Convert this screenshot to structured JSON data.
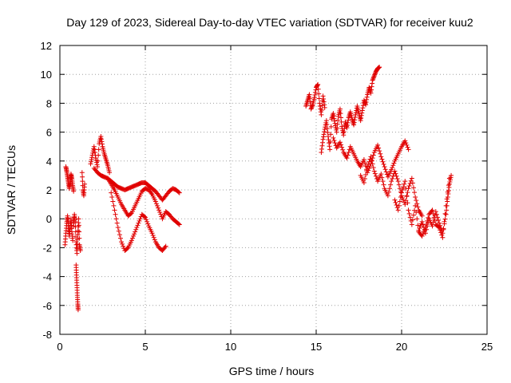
{
  "chart_data": {
    "type": "scatter",
    "title": "Day 129 of 2023, Sidereal Day-to-day VTEC variation (SDTVAR) for receiver kuu2",
    "xlabel": "GPS time / hours",
    "ylabel": "SDTVAR / TECUs",
    "xlim": [
      0,
      25
    ],
    "ylim": [
      -8,
      12
    ],
    "x_ticks": [
      0,
      5,
      10,
      15,
      20,
      25
    ],
    "y_ticks": [
      -8,
      -6,
      -4,
      -2,
      0,
      2,
      4,
      6,
      8,
      10,
      12
    ],
    "grid": true,
    "marker": "plus",
    "color": "#e00000",
    "series": [
      {
        "name": "SDTVAR",
        "segments": [
          {
            "x": [
              0.3,
              0.35,
              0.4,
              0.45,
              0.5,
              0.55,
              0.6,
              0.65,
              0.7,
              0.75
            ],
            "y": [
              -1.8,
              -1.0,
              -0.3,
              0.2,
              -0.5,
              -1.2,
              -0.6,
              0.0,
              -0.9,
              -1.5
            ]
          },
          {
            "x": [
              0.35,
              0.4,
              0.45,
              0.5,
              0.55,
              0.6,
              0.65,
              0.7,
              0.75,
              0.8
            ],
            "y": [
              3.6,
              3.3,
              2.9,
              2.5,
              2.1,
              2.6,
              3.1,
              2.8,
              2.3,
              1.9
            ]
          },
          {
            "x": [
              0.8,
              0.85,
              0.9,
              0.95,
              1.0,
              1.05,
              1.1,
              1.15,
              1.2
            ],
            "y": [
              -0.5,
              0.3,
              -0.2,
              -1.6,
              -2.4,
              -1.1,
              0.0,
              -1.8,
              -2.2
            ]
          },
          {
            "x": [
              0.95,
              0.97,
              1.0,
              1.02,
              1.05,
              1.07
            ],
            "y": [
              -3.2,
              -3.9,
              -4.6,
              -5.3,
              -5.9,
              -6.3
            ]
          },
          {
            "x": [
              1.3,
              1.35,
              1.4,
              1.45
            ],
            "y": [
              3.2,
              2.0,
              1.6,
              2.4
            ]
          },
          {
            "x": [
              1.8,
              1.9,
              2.0,
              2.1,
              2.2,
              2.3,
              2.4,
              2.5,
              2.6,
              2.7,
              2.8,
              2.9
            ],
            "y": [
              3.8,
              4.4,
              5.0,
              4.2,
              3.6,
              5.2,
              5.7,
              5.0,
              4.5,
              4.1,
              3.7,
              3.2
            ]
          },
          {
            "x": [
              2.0,
              2.2,
              2.4,
              2.6,
              2.8,
              3.0,
              3.2,
              3.4,
              3.6,
              3.8,
              4.0,
              4.2,
              4.4,
              4.6,
              4.8,
              5.0,
              5.2,
              5.4,
              5.6,
              5.8,
              6.0,
              6.2,
              6.4,
              6.6,
              6.8,
              7.0
            ],
            "y": [
              3.5,
              3.2,
              3.0,
              2.9,
              2.8,
              2.6,
              2.4,
              2.2,
              2.1,
              2.0,
              2.1,
              2.2,
              2.3,
              2.4,
              2.5,
              2.5,
              2.3,
              2.1,
              1.9,
              1.6,
              1.3,
              1.6,
              1.9,
              2.1,
              2.0,
              1.8
            ]
          },
          {
            "x": [
              2.8,
              3.0,
              3.2,
              3.4,
              3.6,
              3.8,
              4.0,
              4.2,
              4.4,
              4.6,
              4.8,
              5.0,
              5.2,
              5.4,
              5.6,
              5.8,
              6.0,
              6.2,
              6.4,
              6.6,
              6.8,
              7.0
            ],
            "y": [
              2.8,
              2.4,
              2.0,
              1.5,
              1.0,
              0.6,
              0.2,
              0.4,
              0.9,
              1.4,
              1.9,
              2.1,
              2.0,
              1.7,
              1.2,
              0.6,
              0.0,
              0.5,
              0.3,
              0.0,
              -0.2,
              -0.4
            ]
          },
          {
            "x": [
              3.0,
              3.2,
              3.4,
              3.6,
              3.8,
              4.0,
              4.2,
              4.4,
              4.6,
              4.8,
              5.0,
              5.2,
              5.4,
              5.6,
              5.8,
              6.0,
              6.2
            ],
            "y": [
              1.8,
              0.6,
              -0.6,
              -1.6,
              -2.2,
              -2.0,
              -1.5,
              -0.9,
              -0.3,
              0.3,
              0.1,
              -0.5,
              -1.0,
              -1.6,
              -2.0,
              -2.2,
              -1.9
            ]
          },
          {
            "x": [
              14.4,
              14.5,
              14.6,
              14.7,
              14.8,
              14.9,
              15.0,
              15.1,
              15.2,
              15.3,
              15.4,
              15.5
            ],
            "y": [
              7.8,
              8.2,
              8.6,
              7.6,
              7.9,
              8.4,
              9.1,
              9.3,
              8.0,
              7.2,
              8.5,
              7.7
            ]
          },
          {
            "x": [
              15.3,
              15.4,
              15.5,
              15.6,
              15.7,
              15.8,
              15.9,
              16.0,
              16.1,
              16.2,
              16.3,
              16.4,
              16.5,
              16.6,
              16.7,
              16.8,
              16.9,
              17.0,
              17.1,
              17.2,
              17.3,
              17.4,
              17.5,
              17.6,
              17.7,
              17.8,
              17.9,
              18.0,
              18.1,
              18.2,
              18.3,
              18.4,
              18.5,
              18.6,
              18.7
            ],
            "y": [
              4.6,
              5.5,
              6.2,
              6.8,
              5.7,
              4.8,
              6.9,
              7.3,
              6.6,
              6.0,
              7.1,
              7.6,
              6.4,
              5.8,
              6.7,
              6.3,
              7.0,
              7.4,
              6.9,
              6.5,
              7.2,
              7.8,
              7.3,
              6.8,
              7.5,
              8.2,
              7.9,
              8.6,
              9.1,
              8.7,
              9.6,
              9.9,
              10.2,
              10.4,
              10.5
            ]
          },
          {
            "x": [
              16.0,
              16.2,
              16.4,
              16.6,
              16.8,
              17.0,
              17.2,
              17.4,
              17.6,
              17.8,
              18.0,
              18.2,
              18.4,
              18.6,
              18.8,
              19.0,
              19.2,
              19.4,
              19.6,
              19.8,
              20.0,
              20.2,
              20.4
            ],
            "y": [
              5.6,
              4.9,
              5.3,
              4.6,
              4.2,
              5.0,
              4.5,
              4.0,
              3.6,
              4.1,
              3.2,
              3.8,
              4.6,
              5.1,
              4.3,
              3.6,
              2.9,
              3.4,
              4.0,
              4.5,
              5.0,
              5.4,
              4.8
            ]
          },
          {
            "x": [
              17.6,
              17.8,
              18.0,
              18.2,
              18.4,
              18.6,
              18.8,
              19.0,
              19.2,
              19.4,
              19.6,
              19.8,
              20.0,
              20.2,
              20.4,
              20.6,
              20.8,
              21.0,
              21.2
            ],
            "y": [
              3.0,
              2.5,
              3.6,
              4.3,
              3.3,
              2.6,
              3.1,
              2.1,
              1.6,
              2.6,
              3.3,
              2.6,
              1.6,
              1.0,
              2.1,
              2.8,
              1.5,
              0.6,
              0.2
            ]
          },
          {
            "x": [
              19.6,
              19.8,
              20.0,
              20.2,
              20.4,
              20.6,
              20.8,
              21.0,
              21.2,
              21.4,
              21.6,
              21.8,
              22.0,
              22.2,
              22.4,
              22.6,
              22.8
            ],
            "y": [
              1.3,
              0.6,
              1.8,
              2.6,
              0.6,
              -0.4,
              0.9,
              -0.9,
              -1.2,
              -0.6,
              0.3,
              0.6,
              -0.4,
              -0.6,
              -1.3,
              0.9,
              2.8
            ]
          },
          {
            "x": [
              21.0,
              21.2,
              21.4,
              21.6,
              21.8,
              22.0,
              22.2,
              22.4,
              22.6,
              22.7,
              22.8,
              22.9
            ],
            "y": [
              -0.8,
              -0.2,
              -1.0,
              0.0,
              -0.5,
              0.5,
              -0.3,
              -1.0,
              0.3,
              1.5,
              2.4,
              3.0
            ]
          }
        ]
      }
    ]
  }
}
